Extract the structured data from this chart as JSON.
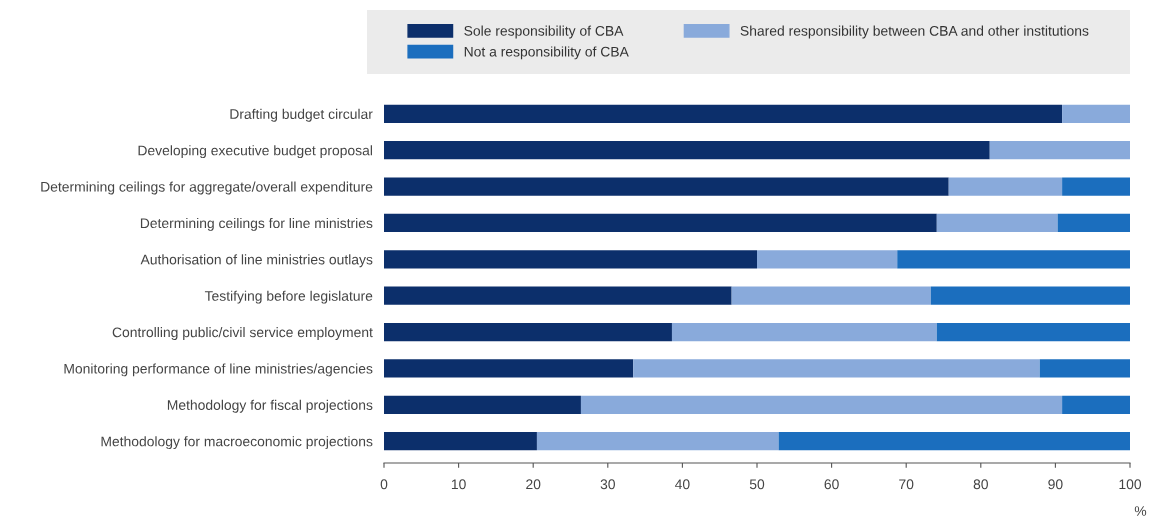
{
  "chart_data": {
    "type": "bar",
    "orientation": "horizontal",
    "stacked": true,
    "legend": "top",
    "grid": false,
    "xlabel": "%",
    "categories": [
      "Drafting budget circular",
      "Developing executive budget proposal",
      "Determining ceilings for aggregate/overall expenditure",
      "Determining ceilings for line ministries",
      "Authorisation of line ministries outlays",
      "Testifying before legislature",
      "Controlling public/civil service employment",
      "Monitoring performance of line ministries/agencies",
      "Methodology for fiscal projections",
      "Methodology for macroeconomic projections"
    ],
    "series": [
      {
        "name": "Sole responsibility of CBA",
        "color": "#0c2f6b",
        "values": [
          90.9,
          81.2,
          75.7,
          74.1,
          50.0,
          46.6,
          38.6,
          33.4,
          26.4,
          20.5
        ]
      },
      {
        "name": "Shared responsibility between CBA and other institutions",
        "color": "#89aadb",
        "values": [
          9.1,
          18.8,
          15.2,
          16.2,
          18.8,
          26.7,
          35.5,
          54.5,
          64.5,
          32.4
        ]
      },
      {
        "name": "Not a responsibility of CBA",
        "color": "#1b6ebe",
        "values": [
          0,
          0,
          9.1,
          9.7,
          31.2,
          26.7,
          25.9,
          12.1,
          9.1,
          47.1
        ]
      }
    ],
    "xlim": [
      0,
      100
    ],
    "xticks": [
      0,
      10,
      20,
      30,
      40,
      50,
      60,
      70,
      80,
      90,
      100
    ]
  }
}
